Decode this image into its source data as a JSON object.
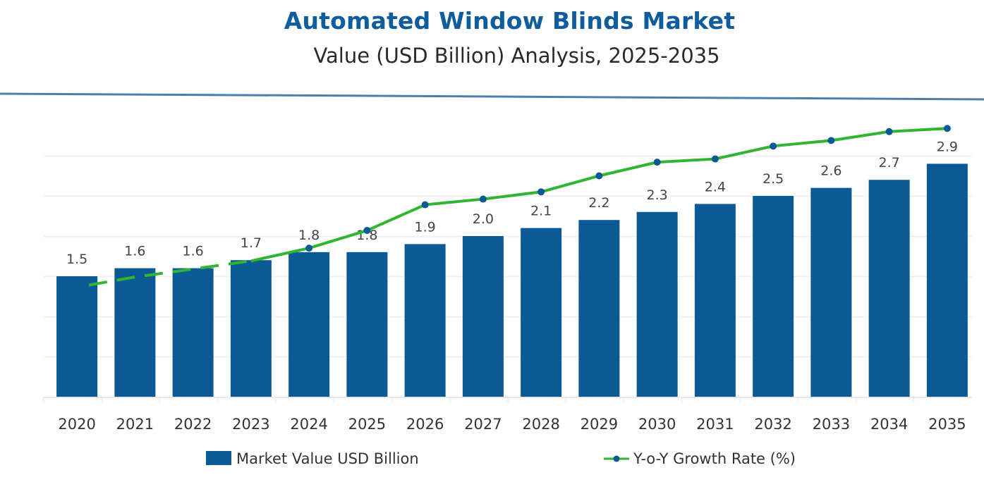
{
  "chart_data": {
    "type": "bar",
    "title": "Automated Window Blinds Market",
    "subtitle": "Value (USD Billion) Analysis, 2025-2035",
    "xlabel": "",
    "ylabel": "",
    "ylim": [
      0,
      3.0
    ],
    "grid": true,
    "legend_position": "bottom",
    "categories": [
      "2020",
      "2021",
      "2022",
      "2023",
      "2024",
      "2025",
      "2026",
      "2027",
      "2028",
      "2029",
      "2030",
      "2031",
      "2032",
      "2033",
      "2034",
      "2035"
    ],
    "series": [
      {
        "name": "Market Value USD Billion",
        "type": "bar",
        "color": "#0b5a96",
        "values": [
          1.5,
          1.6,
          1.6,
          1.7,
          1.8,
          1.8,
          1.9,
          2.0,
          2.1,
          2.2,
          2.3,
          2.4,
          2.5,
          2.6,
          2.7,
          2.9
        ],
        "labels": [
          "1.5",
          "1.6",
          "1.6",
          "1.7",
          "1.8",
          "1.8",
          "1.9",
          "2.0",
          "2.1",
          "2.2",
          "2.3",
          "2.4",
          "2.5",
          "2.6",
          "2.7",
          "2.9"
        ]
      },
      {
        "name": "Y-o-Y Growth Rate (%)",
        "type": "line",
        "color": "#2fb52f",
        "marker_color": "#0b5a96",
        "dashed_until": "2023",
        "markers_from": "2024",
        "values": [
          1.39,
          1.49,
          1.59,
          1.69,
          1.85,
          2.07,
          2.39,
          2.46,
          2.55,
          2.75,
          2.92,
          2.96,
          3.12,
          3.19,
          3.3,
          3.34
        ]
      }
    ]
  }
}
